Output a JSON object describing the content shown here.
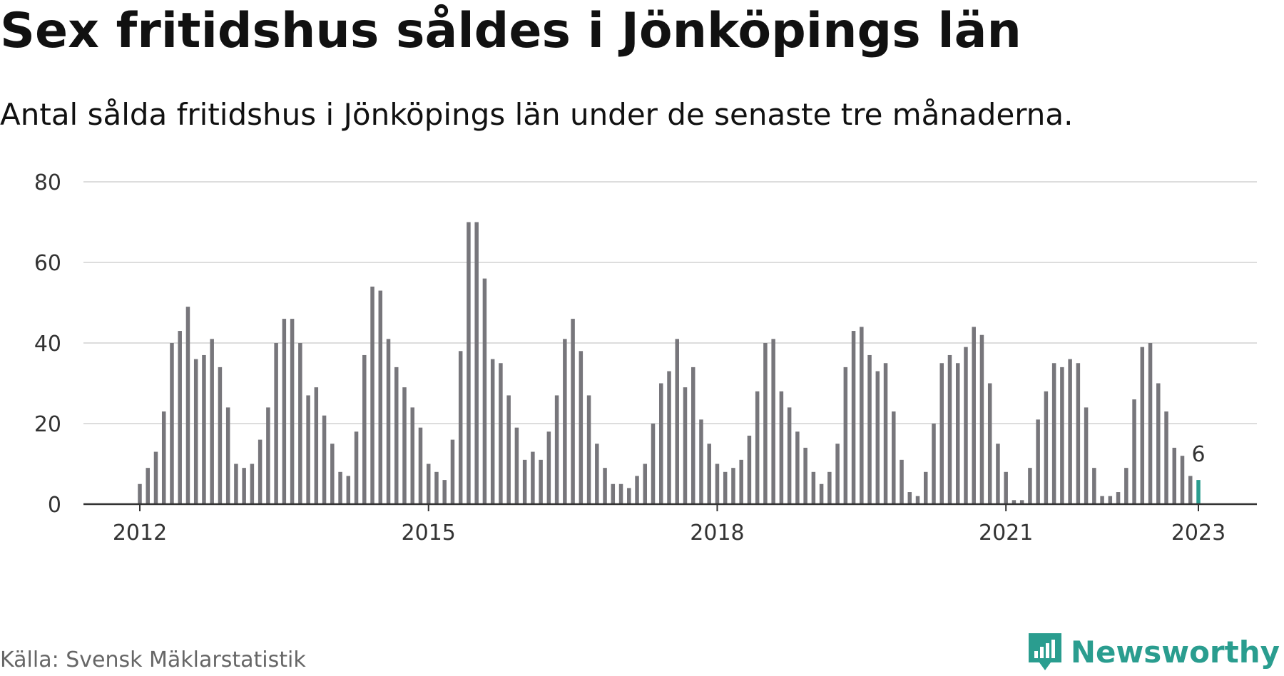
{
  "title": "Sex fritidshus såldes i Jönköpings län",
  "subtitle": "Antal sålda fritidshus i Jönköpings län under de senaste tre månaderna.",
  "source": "Källa: Svensk Mäklarstatistik",
  "brand": "Newsworthy",
  "colors": {
    "bar": "#77767b",
    "highlight": "#2a9d8f",
    "grid": "#dddddd",
    "axis": "#333333",
    "brand": "#2a9d8f"
  },
  "chart_data": {
    "type": "bar",
    "title": "Sex fritidshus såldes i Jönköpings län",
    "xlabel": "",
    "ylabel": "",
    "ylim": [
      0,
      80
    ],
    "yticks": [
      0,
      20,
      40,
      60,
      80
    ],
    "xtick_labels": [
      "2012",
      "2015",
      "2018",
      "2021",
      "2023"
    ],
    "start_month": "2012-01",
    "highlight_label": "6",
    "grid": true,
    "values": [
      5,
      9,
      13,
      23,
      40,
      43,
      49,
      36,
      37,
      41,
      34,
      24,
      10,
      9,
      10,
      16,
      24,
      40,
      46,
      46,
      40,
      27,
      29,
      22,
      15,
      8,
      7,
      18,
      37,
      54,
      53,
      41,
      34,
      29,
      24,
      19,
      10,
      8,
      6,
      16,
      38,
      70,
      70,
      56,
      36,
      35,
      27,
      19,
      11,
      13,
      11,
      18,
      27,
      41,
      46,
      38,
      27,
      15,
      9,
      5,
      5,
      4,
      7,
      10,
      20,
      30,
      33,
      41,
      29,
      34,
      21,
      15,
      10,
      8,
      9,
      11,
      17,
      28,
      40,
      41,
      28,
      24,
      18,
      14,
      8,
      5,
      8,
      15,
      34,
      43,
      44,
      37,
      33,
      35,
      23,
      11,
      3,
      2,
      8,
      20,
      35,
      37,
      35,
      39,
      44,
      42,
      30,
      15,
      8,
      1,
      1,
      9,
      21,
      28,
      35,
      34,
      36,
      35,
      24,
      9,
      2,
      2,
      3,
      9,
      26,
      39,
      40,
      30,
      23,
      14,
      12,
      7,
      6
    ]
  }
}
